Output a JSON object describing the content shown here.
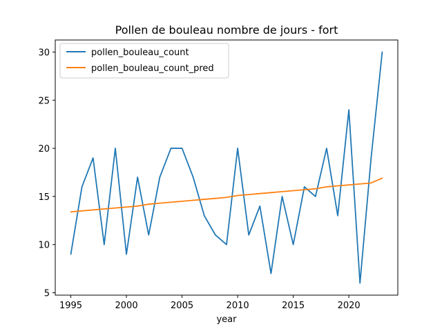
{
  "chart_data": {
    "type": "line",
    "title": "Pollen de bouleau nombre de jours - fort",
    "xlabel": "year",
    "ylabel": "",
    "xlim": [
      1993.6,
      2024.4
    ],
    "ylim": [
      4.75,
      31.25
    ],
    "xticks": [
      1995,
      2000,
      2005,
      2010,
      2015,
      2020
    ],
    "yticks": [
      5,
      10,
      15,
      20,
      25,
      30
    ],
    "grid": false,
    "legend_position": "top-left",
    "x": [
      1995,
      1996,
      1997,
      1998,
      1999,
      2000,
      2001,
      2002,
      2003,
      2004,
      2005,
      2006,
      2007,
      2008,
      2009,
      2010,
      2011,
      2012,
      2013,
      2014,
      2015,
      2016,
      2017,
      2018,
      2019,
      2020,
      2021,
      2022,
      2023
    ],
    "series": [
      {
        "name": "pollen_bouleau_count",
        "color": "#1f77b4",
        "values": [
          9,
          16,
          19,
          10,
          20,
          9,
          17,
          11,
          17,
          20,
          20,
          17,
          13,
          11,
          10,
          20,
          11,
          14,
          7,
          15,
          10,
          16,
          15,
          20,
          13,
          24,
          6,
          19,
          30
        ]
      },
      {
        "name": "pollen_bouleau_count_pred",
        "color": "#ff7f0e",
        "values": [
          13.4,
          13.5,
          13.6,
          13.7,
          13.8,
          13.9,
          14.0,
          14.2,
          14.3,
          14.4,
          14.5,
          14.6,
          14.7,
          14.8,
          14.9,
          15.1,
          15.2,
          15.3,
          15.4,
          15.5,
          15.6,
          15.7,
          15.8,
          16.0,
          16.1,
          16.2,
          16.3,
          16.4,
          16.9
        ]
      }
    ]
  }
}
